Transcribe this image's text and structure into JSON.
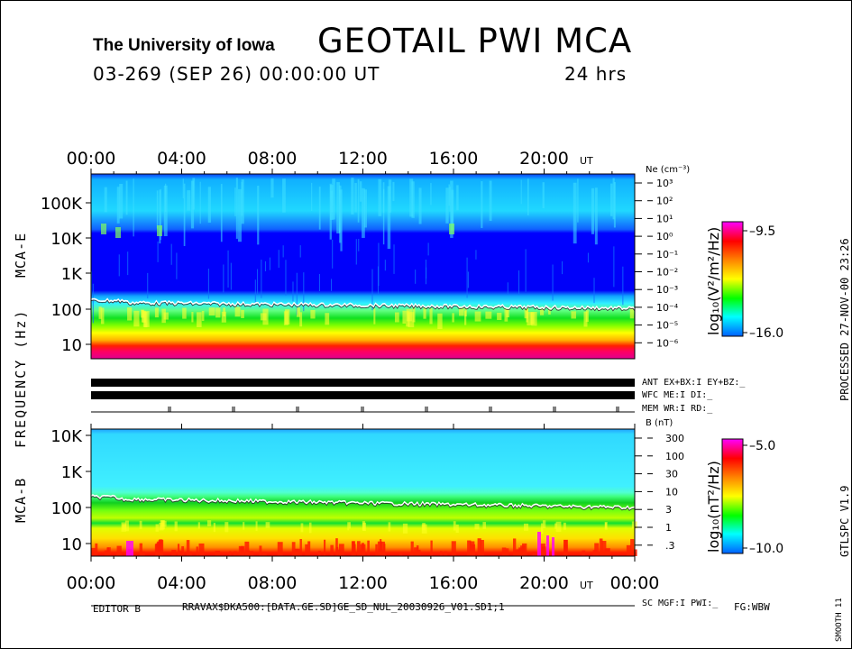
{
  "header": {
    "institution": "The University of Iowa",
    "title": "GEOTAIL PWI MCA",
    "date_line": "03-269 (SEP 26) 00:00:00 UT",
    "duration": "24 hrs"
  },
  "side_labels": {
    "processed": "PROCESSED 27-NOV-00  23:26",
    "version": "GTLSPC    V1.9",
    "smooth": "SMOOTH 11",
    "frequency_axis": "FREQUENCY (Hz)",
    "panel_e": "MCA-E",
    "panel_b": "MCA-B"
  },
  "status": {
    "ant": "ANT EX+BX:I  EY+BZ:_",
    "wfc": "WFC ME:I      DI:_",
    "mem": "MEM WR:I      RD:_",
    "sc": "SC MGF:I    PWI:_"
  },
  "footer": {
    "editor": "EDITOR B",
    "file": "RRAVAX$DKA500:[DATA.GE.SD]GE_SD_NUL_20030926_V01.SD1;1",
    "fg": "FG:WBW"
  },
  "chart_data": [
    {
      "type": "heatmap",
      "name": "MCA-E",
      "x_ticks": [
        "00:00",
        "04:00",
        "08:00",
        "12:00",
        "16:00",
        "20:00"
      ],
      "x_unit": "UT",
      "y_ticks": [
        "10",
        "100",
        "1K",
        "10K",
        "100K"
      ],
      "y_scale": "log",
      "ylim": [
        5,
        400000
      ],
      "right_axis_label": "Ne (cm⁻³)",
      "right_axis_ticks": [
        "10³",
        "10²",
        "10¹",
        "10⁰",
        "10⁻¹",
        "10⁻²",
        "10⁻³",
        "10⁻⁴",
        "10⁻⁵",
        "10⁻⁶"
      ],
      "colorbar_label": "log₁₀(V²/m²/Hz)",
      "colorbar_range": [
        "-9.5",
        "-16.0"
      ],
      "colors": [
        "#ff00ff",
        "#ff0000",
        "#ff8000",
        "#ffff00",
        "#00ff00",
        "#00ffff",
        "#0000ff"
      ]
    },
    {
      "type": "heatmap",
      "name": "MCA-B",
      "x_ticks": [
        "00:00",
        "04:00",
        "08:00",
        "12:00",
        "16:00",
        "20:00",
        "00:00"
      ],
      "x_unit": "UT",
      "y_ticks": [
        "10",
        "100",
        "1K",
        "10K"
      ],
      "y_scale": "log",
      "ylim": [
        5,
        12000
      ],
      "right_axis_label": "B (nT)",
      "right_axis_ticks": [
        "300",
        "100",
        "30",
        "10",
        "3",
        "1",
        ".3"
      ],
      "colorbar_label": "log₁₀(nT²/Hz)",
      "colorbar_range": [
        "-5.0",
        "-10.0"
      ],
      "colors": [
        "#ff00ff",
        "#ff0000",
        "#ff8000",
        "#ffff00",
        "#00ff00",
        "#00ffff",
        "#0000ff"
      ]
    }
  ]
}
